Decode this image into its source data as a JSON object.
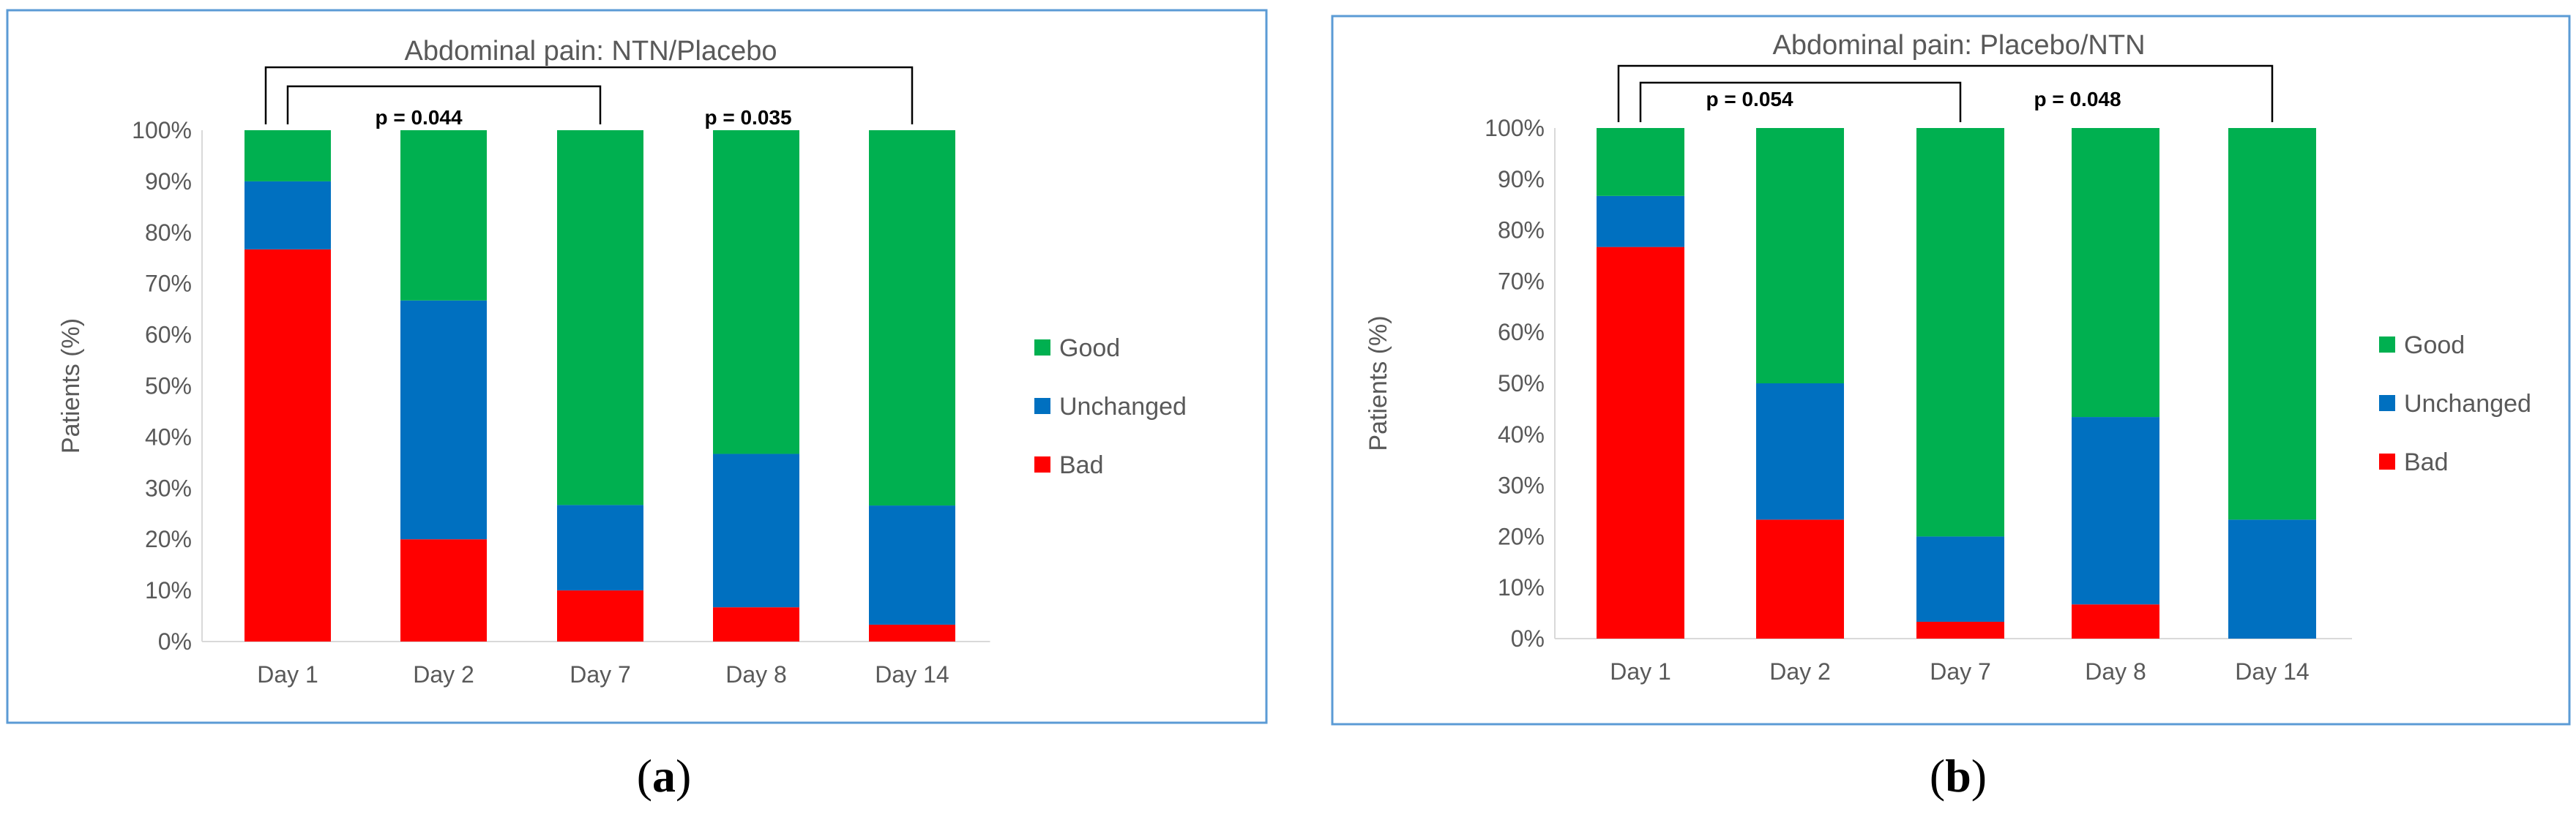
{
  "panels": [
    {
      "caption_label": "a"
    },
    {
      "caption_label": "b"
    }
  ],
  "colors": {
    "good": "#00B050",
    "unchanged": "#0070C0",
    "bad": "#FF0000",
    "frame": "#5B9BD5",
    "axis_text": "#595959",
    "gridline": "#D9D9D9"
  },
  "chart_data": [
    {
      "type": "bar",
      "stacked": true,
      "title": "Abdominal pain: NTN/Placebo",
      "xlabel": "",
      "ylabel": "Patients (%)",
      "categories": [
        "Day 1",
        "Day 2",
        "Day 7",
        "Day 8",
        "Day 14"
      ],
      "y_ticks": [
        "0%",
        "10%",
        "20%",
        "30%",
        "40%",
        "50%",
        "60%",
        "70%",
        "80%",
        "90%",
        "100%"
      ],
      "ylim": [
        0,
        100
      ],
      "grid": false,
      "legend_position": "right",
      "series": [
        {
          "name": "Bad",
          "color": "#FF0000",
          "values": [
            76.7,
            20,
            10,
            6.7,
            3.3
          ]
        },
        {
          "name": "Unchanged",
          "color": "#0070C0",
          "values": [
            13.3,
            46.7,
            16.7,
            30,
            23.3
          ]
        },
        {
          "name": "Good",
          "color": "#00B050",
          "values": [
            10,
            33.3,
            73.3,
            63.3,
            73.4
          ]
        }
      ],
      "legend_order": [
        "Good",
        "Unchanged",
        "Bad"
      ],
      "annotations": [
        {
          "label": "p = 0.044",
          "from": "Day 1",
          "to": "Day 7",
          "level": "inner"
        },
        {
          "label": "p = 0.035",
          "from": "Day 1",
          "to": "Day 14",
          "level": "outer"
        }
      ]
    },
    {
      "type": "bar",
      "stacked": true,
      "title": "Abdominal pain: Placebo/NTN",
      "xlabel": "",
      "ylabel": "Patients (%)",
      "categories": [
        "Day 1",
        "Day 2",
        "Day 7",
        "Day 8",
        "Day 14"
      ],
      "y_ticks": [
        "0%",
        "10%",
        "20%",
        "30%",
        "40%",
        "50%",
        "60%",
        "70%",
        "80%",
        "90%",
        "100%"
      ],
      "ylim": [
        0,
        100
      ],
      "grid": false,
      "legend_position": "right",
      "series": [
        {
          "name": "Bad",
          "color": "#FF0000",
          "values": [
            76.7,
            23.3,
            3.3,
            6.7,
            0
          ]
        },
        {
          "name": "Unchanged",
          "color": "#0070C0",
          "values": [
            10,
            26.7,
            16.7,
            36.7,
            23.3
          ]
        },
        {
          "name": "Good",
          "color": "#00B050",
          "values": [
            13.3,
            50,
            80,
            56.6,
            76.7
          ]
        }
      ],
      "legend_order": [
        "Good",
        "Unchanged",
        "Bad"
      ],
      "annotations": [
        {
          "label": "p = 0.054",
          "from": "Day 1",
          "to": "Day 7",
          "level": "inner"
        },
        {
          "label": "p = 0.048",
          "from": "Day 1",
          "to": "Day 14",
          "level": "outer"
        }
      ]
    }
  ]
}
